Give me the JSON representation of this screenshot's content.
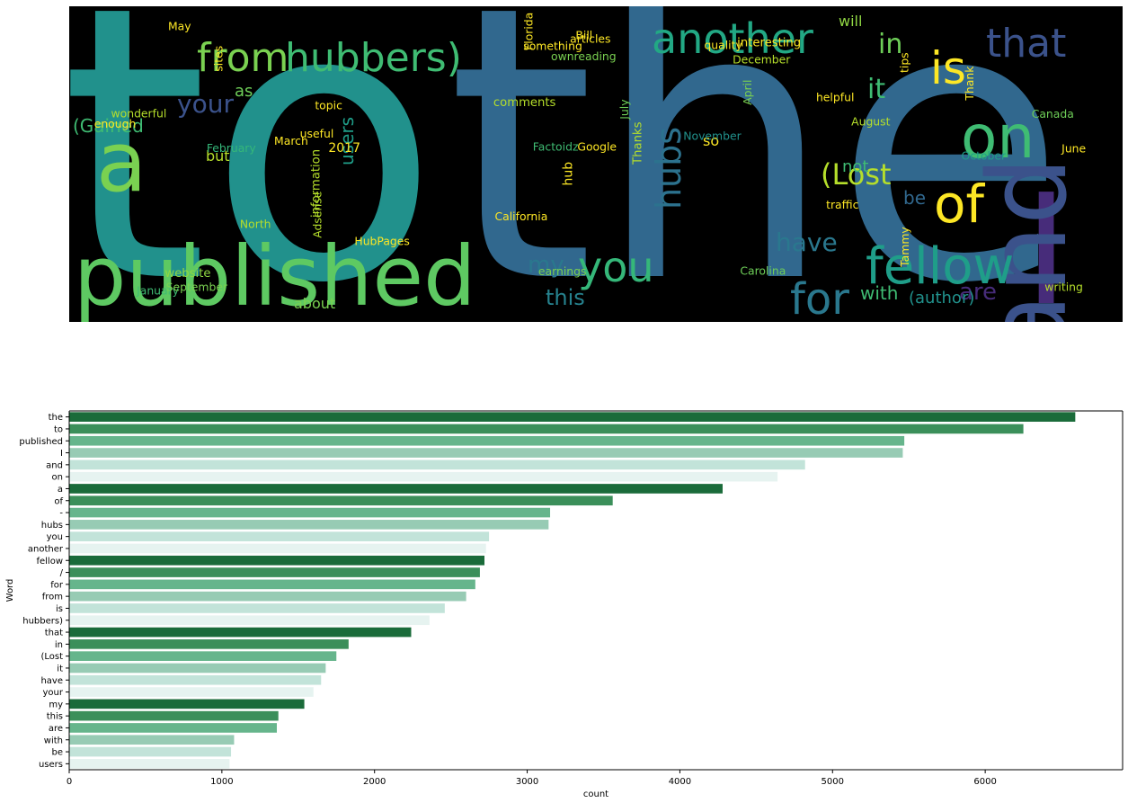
{
  "wordcloud": {
    "words": [
      {
        "text": "to",
        "color": "#21918c",
        "weight": 1.0
      },
      {
        "text": "the",
        "color": "#31688e",
        "weight": 1.0
      },
      {
        "text": "published",
        "color": "#5ec962",
        "weight": 0.55
      },
      {
        "text": "I",
        "color": "#472c7a",
        "weight": 0.5
      },
      {
        "text": "and",
        "color": "#3b528b",
        "weight": 0.5
      },
      {
        "text": "from",
        "color": "#7ad151",
        "weight": 0.3
      },
      {
        "text": "hubbers)",
        "color": "#3fbc73",
        "weight": 0.3
      },
      {
        "text": "another",
        "color": "#22a884",
        "weight": 0.3
      },
      {
        "text": "that",
        "color": "#3b528b",
        "weight": 0.3
      },
      {
        "text": "is",
        "color": "#fde725",
        "weight": 0.3
      },
      {
        "text": "on",
        "color": "#3fbc73",
        "weight": 0.35
      },
      {
        "text": "a",
        "color": "#7ad151",
        "weight": 0.4
      },
      {
        "text": "of",
        "color": "#fde725",
        "weight": 0.32
      },
      {
        "text": "fellow",
        "color": "#1f9e89",
        "weight": 0.3
      },
      {
        "text": "for",
        "color": "#2a788e",
        "weight": 0.28
      },
      {
        "text": "you",
        "color": "#35b779",
        "weight": 0.27
      },
      {
        "text": "hubs",
        "color": "#2c728e",
        "weight": 0.27
      },
      {
        "text": "(Lost",
        "color": "#b5de2b",
        "weight": 0.24
      },
      {
        "text": "in",
        "color": "#6ece58",
        "weight": 0.22
      },
      {
        "text": "it",
        "color": "#3fbc73",
        "weight": 0.2
      },
      {
        "text": "have",
        "color": "#2a788e",
        "weight": 0.18
      },
      {
        "text": "your",
        "color": "#3b528b",
        "weight": 0.16
      },
      {
        "text": "my",
        "color": "#2a788e",
        "weight": 0.15
      },
      {
        "text": "this",
        "color": "#26828e",
        "weight": 0.15
      },
      {
        "text": "are",
        "color": "#472c7a",
        "weight": 0.15
      },
      {
        "text": "with",
        "color": "#3fbc73",
        "weight": 0.12
      },
      {
        "text": "be",
        "color": "#31688e",
        "weight": 0.12
      },
      {
        "text": "users",
        "color": "#1f9e89",
        "weight": 0.12
      },
      {
        "text": "(Gained",
        "color": "#3fbc73",
        "weight": 0.1
      },
      {
        "text": "(author)",
        "color": "#21918c",
        "weight": 0.09
      },
      {
        "text": "not",
        "color": "#3fbc73",
        "weight": 0.09
      },
      {
        "text": "as",
        "color": "#6ece58",
        "weight": 0.09
      },
      {
        "text": "so",
        "color": "#fde725",
        "weight": 0.08
      },
      {
        "text": "but",
        "color": "#b5de2b",
        "weight": 0.07
      },
      {
        "text": "about",
        "color": "#7ad151",
        "weight": 0.07
      },
      {
        "text": "will",
        "color": "#90d743",
        "weight": 0.07
      },
      {
        "text": "hub",
        "color": "#fde725",
        "weight": 0.05
      },
      {
        "text": "2017",
        "color": "#fde725",
        "weight": 0.05
      },
      {
        "text": "website",
        "color": "#90d743",
        "weight": 0.04
      },
      {
        "text": "comments",
        "color": "#b5de2b",
        "weight": 0.04
      },
      {
        "text": "interesting",
        "color": "#fde725",
        "weight": 0.04
      },
      {
        "text": "information",
        "color": "#b5de2b",
        "weight": 0.04
      },
      {
        "text": "Thanks",
        "color": "#b5de2b",
        "weight": 0.04
      },
      {
        "text": "January",
        "color": "#3fbc73",
        "weight": 0.03
      },
      {
        "text": "February",
        "color": "#35b779",
        "weight": 0.03
      },
      {
        "text": "March",
        "color": "#fde725",
        "weight": 0.03
      },
      {
        "text": "April",
        "color": "#7ad151",
        "weight": 0.03
      },
      {
        "text": "June",
        "color": "#fde725",
        "weight": 0.03
      },
      {
        "text": "July",
        "color": "#6ece58",
        "weight": 0.03
      },
      {
        "text": "August",
        "color": "#b5de2b",
        "weight": 0.03
      },
      {
        "text": "September",
        "color": "#7ad151",
        "weight": 0.03
      },
      {
        "text": "October",
        "color": "#1f9e89",
        "weight": 0.03
      },
      {
        "text": "November",
        "color": "#21918c",
        "weight": 0.03
      },
      {
        "text": "December",
        "color": "#b5de2b",
        "weight": 0.03
      },
      {
        "text": "Florida",
        "color": "#fde725",
        "weight": 0.03
      },
      {
        "text": "California",
        "color": "#fde725",
        "weight": 0.03
      },
      {
        "text": "Canada",
        "color": "#6ece58",
        "weight": 0.03
      },
      {
        "text": "Google",
        "color": "#fde725",
        "weight": 0.03
      },
      {
        "text": "Factoidz",
        "color": "#3fbc73",
        "weight": 0.03
      },
      {
        "text": "Adsense",
        "color": "#b5de2b",
        "weight": 0.03
      },
      {
        "text": "HubPages",
        "color": "#fde725",
        "weight": 0.03
      },
      {
        "text": "writing",
        "color": "#b5de2b",
        "weight": 0.03
      },
      {
        "text": "traffic",
        "color": "#fde725",
        "weight": 0.03
      },
      {
        "text": "wonderful",
        "color": "#b5de2b",
        "weight": 0.03
      },
      {
        "text": "useful",
        "color": "#fde725",
        "weight": 0.03
      },
      {
        "text": "helpful",
        "color": "#fde725",
        "weight": 0.03
      },
      {
        "text": "enough",
        "color": "#fde725",
        "weight": 0.03
      },
      {
        "text": "something",
        "color": "#fde725",
        "weight": 0.03
      },
      {
        "text": "earnings",
        "color": "#7ad151",
        "weight": 0.03
      },
      {
        "text": "ownreading",
        "color": "#7ad151",
        "weight": 0.03
      },
      {
        "text": "Thank",
        "color": "#fde725",
        "weight": 0.03
      },
      {
        "text": "North",
        "color": "#b5de2b",
        "weight": 0.03
      },
      {
        "text": "Carolina",
        "color": "#6ece58",
        "weight": 0.03
      },
      {
        "text": "tips",
        "color": "#fde725",
        "weight": 0.03
      },
      {
        "text": "May",
        "color": "#fde725",
        "weight": 0.03
      },
      {
        "text": "Tammy",
        "color": "#fde725",
        "weight": 0.03
      },
      {
        "text": "Bill",
        "color": "#fde725",
        "weight": 0.03
      },
      {
        "text": "articles",
        "color": "#fde725",
        "weight": 0.03
      },
      {
        "text": "topic",
        "color": "#fde725",
        "weight": 0.03
      },
      {
        "text": "sites",
        "color": "#fde725",
        "weight": 0.03
      },
      {
        "text": "quality",
        "color": "#fde725",
        "weight": 0.03
      }
    ]
  },
  "chart_data": {
    "type": "bar",
    "orientation": "horizontal",
    "xlabel": "count",
    "ylabel": "Word",
    "xlim": [
      0,
      6900
    ],
    "xticks": [
      0,
      1000,
      2000,
      3000,
      4000,
      5000,
      6000
    ],
    "categories": [
      "the",
      "to",
      "published",
      "I",
      "and",
      "on",
      "a",
      "of",
      "-",
      "hubs",
      "you",
      "another",
      "fellow",
      "/",
      "for",
      "from",
      "is",
      "hubbers)",
      "that",
      "in",
      "(Lost",
      "it",
      "have",
      "your",
      "my",
      "this",
      "are",
      "with",
      "be",
      "users"
    ],
    "values": [
      6590,
      6250,
      5470,
      5460,
      4820,
      4640,
      4280,
      3560,
      3150,
      3140,
      2750,
      2730,
      2720,
      2690,
      2660,
      2600,
      2460,
      2360,
      2240,
      1830,
      1750,
      1680,
      1650,
      1600,
      1540,
      1370,
      1360,
      1080,
      1060,
      1050
    ],
    "palette": [
      "#1a6b3a",
      "#3b8f5a",
      "#66b58c",
      "#97cbb4",
      "#c2e3d9",
      "#e6f3f0"
    ],
    "grid": false,
    "legend": false
  }
}
